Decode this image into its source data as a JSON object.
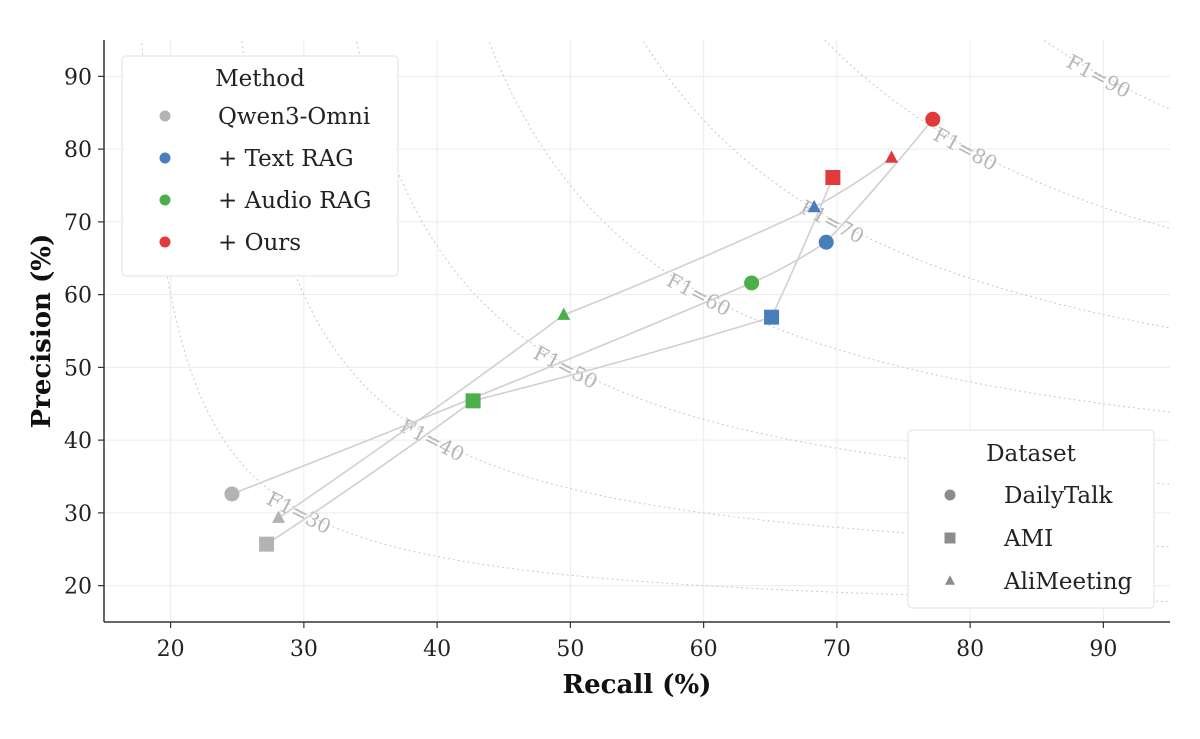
{
  "chart_data": {
    "type": "scatter",
    "xlabel": "Recall (%)",
    "ylabel": "Precision (%)",
    "xlim": [
      15,
      95
    ],
    "ylim": [
      15,
      95
    ],
    "xticks": [
      20,
      30,
      40,
      50,
      60,
      70,
      80,
      90
    ],
    "yticks": [
      20,
      30,
      40,
      50,
      60,
      70,
      80,
      90
    ],
    "grid": true,
    "f1_contours": [
      {
        "f1": 30,
        "label": "F1=30"
      },
      {
        "f1": 40,
        "label": "F1=40"
      },
      {
        "f1": 50,
        "label": "F1=50"
      },
      {
        "f1": 60,
        "label": "F1=60"
      },
      {
        "f1": 70,
        "label": "F1=70"
      },
      {
        "f1": 80,
        "label": "F1=80"
      },
      {
        "f1": 90,
        "label": "F1=90"
      }
    ],
    "methods": [
      {
        "name": "Qwen3-Omni",
        "color": "#b3b3b3"
      },
      {
        "name": "+ Text RAG",
        "color": "#4a7ebb"
      },
      {
        "name": "+ Audio RAG",
        "color": "#4daf4a"
      },
      {
        "name": "+ Ours",
        "color": "#e03a3a"
      }
    ],
    "datasets": [
      {
        "name": "DailyTalk",
        "marker": "circle"
      },
      {
        "name": "AMI",
        "marker": "square"
      },
      {
        "name": "AliMeeting",
        "marker": "triangle"
      }
    ],
    "points": [
      {
        "method": "Qwen3-Omni",
        "dataset": "DailyTalk",
        "x": 24.6,
        "y": 32.6
      },
      {
        "method": "+ Text RAG",
        "dataset": "DailyTalk",
        "x": 69.2,
        "y": 67.2
      },
      {
        "method": "+ Audio RAG",
        "dataset": "DailyTalk",
        "x": 63.6,
        "y": 61.6
      },
      {
        "method": "+ Ours",
        "dataset": "DailyTalk",
        "x": 77.2,
        "y": 84.1
      },
      {
        "method": "Qwen3-Omni",
        "dataset": "AMI",
        "x": 27.2,
        "y": 25.7
      },
      {
        "method": "+ Text RAG",
        "dataset": "AMI",
        "x": 65.1,
        "y": 56.9
      },
      {
        "method": "+ Audio RAG",
        "dataset": "AMI",
        "x": 42.7,
        "y": 45.4
      },
      {
        "method": "+ Ours",
        "dataset": "AMI",
        "x": 69.7,
        "y": 76.1
      },
      {
        "method": "Qwen3-Omni",
        "dataset": "AliMeeting",
        "x": 28.1,
        "y": 29.3
      },
      {
        "method": "+ Text RAG",
        "dataset": "AliMeeting",
        "x": 68.3,
        "y": 72.0
      },
      {
        "method": "+ Audio RAG",
        "dataset": "AliMeeting",
        "x": 49.5,
        "y": 57.2
      },
      {
        "method": "+ Ours",
        "dataset": "AliMeeting",
        "x": 74.1,
        "y": 78.8
      }
    ],
    "legend_method": {
      "title": "Method",
      "placement": "top-left"
    },
    "legend_dataset": {
      "title": "Dataset",
      "placement": "bottom-right"
    },
    "marker_color_neutral": "#8c8c8c",
    "trajectory_color": "#d0d0d0"
  }
}
